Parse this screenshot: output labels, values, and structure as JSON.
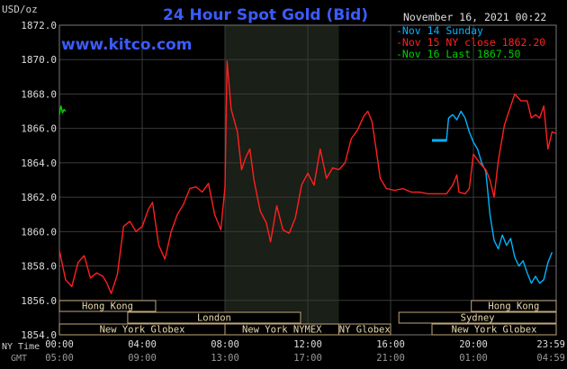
{
  "chart_data": {
    "type": "line",
    "title": "24 Hour Spot Gold (Bid)",
    "site": "www.kitco.com",
    "date_time": "November 16, 2021 00:22",
    "ylabel": "USD/oz",
    "ylim": [
      1854.0,
      1872.0
    ],
    "yticks": [
      "1872.0",
      "1870.0",
      "1868.0",
      "1866.0",
      "1864.0",
      "1862.0",
      "1860.0",
      "1858.0",
      "1856.0",
      "1854.0"
    ],
    "xlim": [
      0,
      24
    ],
    "xaxis_label_ny": "NY Time",
    "xaxis_label_gmt": "GMT",
    "xticks_ny": [
      {
        "h": 0,
        "label": "00:00"
      },
      {
        "h": 4,
        "label": "04:00"
      },
      {
        "h": 8,
        "label": "08:00"
      },
      {
        "h": 12,
        "label": "12:00"
      },
      {
        "h": 16,
        "label": "16:00"
      },
      {
        "h": 20,
        "label": "20:00"
      },
      {
        "h": 24,
        "label": "23:59"
      }
    ],
    "xticks_gmt": [
      "05:00",
      "09:00",
      "13:00",
      "17:00",
      "21:00",
      "01:00",
      "04:59"
    ],
    "shaded_region": [
      8.0,
      13.5
    ],
    "grid": true,
    "legend_position": "top-right",
    "series": [
      {
        "name": "Nov 14 Sunday",
        "color": "#00b4ff",
        "points": [
          [
            18.0,
            1865.3
          ],
          [
            18.7,
            1865.3
          ],
          [
            18.8,
            1866.6
          ],
          [
            19.0,
            1866.8
          ],
          [
            19.2,
            1866.5
          ],
          [
            19.4,
            1867.0
          ],
          [
            19.6,
            1866.6
          ],
          [
            19.8,
            1865.8
          ],
          [
            20.0,
            1865.2
          ],
          [
            20.2,
            1864.8
          ],
          [
            20.4,
            1864.0
          ],
          [
            20.6,
            1863.5
          ],
          [
            20.8,
            1861.0
          ],
          [
            21.0,
            1859.5
          ],
          [
            21.2,
            1859.0
          ],
          [
            21.4,
            1859.8
          ],
          [
            21.6,
            1859.2
          ],
          [
            21.8,
            1859.6
          ],
          [
            22.0,
            1858.5
          ],
          [
            22.2,
            1858.0
          ],
          [
            22.4,
            1858.3
          ],
          [
            22.6,
            1857.6
          ],
          [
            22.8,
            1857.0
          ],
          [
            23.0,
            1857.4
          ],
          [
            23.2,
            1857.0
          ],
          [
            23.4,
            1857.2
          ],
          [
            23.6,
            1858.2
          ],
          [
            23.8,
            1858.8
          ]
        ]
      },
      {
        "name": "Nov 15 NY close 1862.20",
        "color": "#ff2020",
        "points": [
          [
            0.0,
            1858.9
          ],
          [
            0.3,
            1857.2
          ],
          [
            0.6,
            1856.8
          ],
          [
            0.9,
            1858.2
          ],
          [
            1.2,
            1858.6
          ],
          [
            1.5,
            1857.3
          ],
          [
            1.8,
            1857.6
          ],
          [
            2.1,
            1857.4
          ],
          [
            2.3,
            1857.0
          ],
          [
            2.5,
            1856.4
          ],
          [
            2.8,
            1857.5
          ],
          [
            3.1,
            1860.3
          ],
          [
            3.4,
            1860.6
          ],
          [
            3.7,
            1860.0
          ],
          [
            4.0,
            1860.3
          ],
          [
            4.3,
            1861.3
          ],
          [
            4.5,
            1861.7
          ],
          [
            4.8,
            1859.2
          ],
          [
            5.1,
            1858.4
          ],
          [
            5.4,
            1860.0
          ],
          [
            5.7,
            1861.0
          ],
          [
            6.0,
            1861.6
          ],
          [
            6.3,
            1862.5
          ],
          [
            6.6,
            1862.6
          ],
          [
            6.9,
            1862.3
          ],
          [
            7.2,
            1862.8
          ],
          [
            7.5,
            1861.0
          ],
          [
            7.8,
            1860.1
          ],
          [
            8.0,
            1862.6
          ],
          [
            8.1,
            1869.9
          ],
          [
            8.3,
            1867.1
          ],
          [
            8.6,
            1865.8
          ],
          [
            8.8,
            1863.6
          ],
          [
            9.0,
            1864.3
          ],
          [
            9.2,
            1864.8
          ],
          [
            9.4,
            1863.0
          ],
          [
            9.7,
            1861.2
          ],
          [
            10.0,
            1860.5
          ],
          [
            10.2,
            1859.4
          ],
          [
            10.5,
            1861.5
          ],
          [
            10.8,
            1860.1
          ],
          [
            11.1,
            1859.9
          ],
          [
            11.4,
            1860.8
          ],
          [
            11.7,
            1862.7
          ],
          [
            12.0,
            1863.4
          ],
          [
            12.3,
            1862.7
          ],
          [
            12.6,
            1864.8
          ],
          [
            12.9,
            1863.1
          ],
          [
            13.2,
            1863.7
          ],
          [
            13.5,
            1863.6
          ],
          [
            13.8,
            1864.0
          ],
          [
            14.1,
            1865.4
          ],
          [
            14.4,
            1865.9
          ],
          [
            14.7,
            1866.7
          ],
          [
            14.9,
            1867.0
          ],
          [
            15.1,
            1866.4
          ],
          [
            15.3,
            1864.8
          ],
          [
            15.5,
            1863.1
          ],
          [
            15.8,
            1862.5
          ],
          [
            16.2,
            1862.4
          ],
          [
            16.6,
            1862.5
          ],
          [
            17.0,
            1862.3
          ],
          [
            17.4,
            1862.3
          ],
          [
            17.8,
            1862.2
          ],
          [
            18.0,
            1862.2
          ],
          [
            18.7,
            1862.2
          ],
          [
            19.0,
            1862.7
          ],
          [
            19.2,
            1863.3
          ],
          [
            19.3,
            1862.3
          ],
          [
            19.6,
            1862.2
          ],
          [
            19.8,
            1862.5
          ],
          [
            20.0,
            1864.5
          ],
          [
            20.3,
            1864.0
          ],
          [
            20.6,
            1863.6
          ],
          [
            20.8,
            1863.0
          ],
          [
            21.0,
            1862.0
          ],
          [
            21.2,
            1864.1
          ],
          [
            21.5,
            1866.2
          ],
          [
            21.8,
            1867.3
          ],
          [
            22.0,
            1868.0
          ],
          [
            22.3,
            1867.6
          ],
          [
            22.6,
            1867.6
          ],
          [
            22.8,
            1866.6
          ],
          [
            23.0,
            1866.8
          ],
          [
            23.2,
            1866.6
          ],
          [
            23.4,
            1867.3
          ],
          [
            23.6,
            1864.8
          ],
          [
            23.8,
            1865.8
          ],
          [
            24.0,
            1865.7
          ]
        ]
      },
      {
        "name": "Nov 16 Last 1867.50",
        "color": "#00d000",
        "points": [
          [
            0.0,
            1866.8
          ],
          [
            0.08,
            1867.3
          ],
          [
            0.15,
            1866.9
          ],
          [
            0.22,
            1867.1
          ],
          [
            0.3,
            1867.0
          ]
        ]
      }
    ],
    "sessions": [
      {
        "label": "Hong Kong",
        "start": 0.0,
        "end": 4.65,
        "row": 0
      },
      {
        "label": "London",
        "start": 3.3,
        "end": 11.65,
        "row": 1
      },
      {
        "label": "New York Globex",
        "start": 0.0,
        "end": 8.0,
        "row": 2
      },
      {
        "label": "New York NYMEX",
        "start": 8.0,
        "end": 13.5,
        "row": 2
      },
      {
        "label": "NY Globex",
        "start": 13.5,
        "end": 16.0,
        "row": 2
      },
      {
        "label": "Hong Kong",
        "start": 19.9,
        "end": 24.0,
        "row": 0
      },
      {
        "label": "Sydney",
        "start": 16.4,
        "end": 24.0,
        "row": 1
      },
      {
        "label": "New York Globex",
        "start": 18.0,
        "end": 24.0,
        "row": 2
      }
    ]
  }
}
